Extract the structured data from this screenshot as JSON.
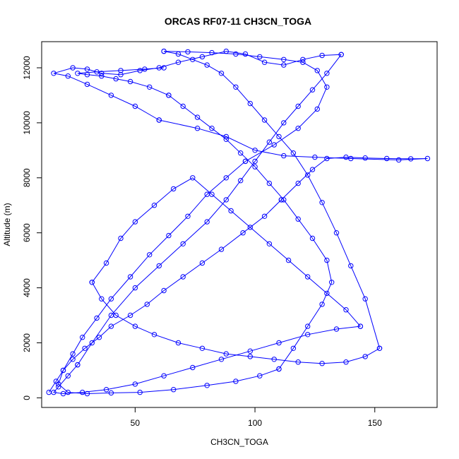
{
  "chart_data": {
    "type": "line",
    "title": "ORCAS RF07-11 CH3CN_TOGA",
    "xlabel": "CH3CN_TOGA",
    "ylabel": "Altitude (m)",
    "xlim": [
      11,
      176
    ],
    "ylim": [
      -350,
      12950
    ],
    "xticks": [
      50,
      100,
      150
    ],
    "yticks": [
      0,
      2000,
      4000,
      6000,
      8000,
      10000,
      12000
    ],
    "grid": false,
    "legend": "none",
    "color": "#0000ff",
    "marker": "open-circle",
    "series": [
      {
        "x": [
          14,
          17,
          20,
          24,
          29,
          35,
          40,
          48,
          55,
          62,
          70,
          78,
          86,
          95,
          104,
          111
        ],
        "y": [
          200,
          600,
          1000,
          1400,
          1800,
          2200,
          2600,
          3000,
          3400,
          3900,
          4400,
          4900,
          5400,
          6000,
          6600,
          7200
        ]
      },
      {
        "x": [
          111,
          118,
          124,
          130,
          138,
          146,
          155,
          165,
          172,
          160,
          140,
          125,
          112,
          100,
          88,
          76,
          60
        ],
        "y": [
          7200,
          7800,
          8300,
          8700,
          8750,
          8720,
          8700,
          8690,
          8700,
          8650,
          8700,
          8750,
          8800,
          9000,
          9500,
          9800,
          10100
        ]
      },
      {
        "x": [
          60,
          50,
          40,
          30,
          22,
          16,
          24,
          30,
          36,
          44,
          52,
          60,
          68,
          78,
          88,
          96,
          104,
          112,
          120,
          128,
          136
        ],
        "y": [
          10100,
          10600,
          11000,
          11400,
          11700,
          11800,
          12000,
          11950,
          11800,
          11750,
          11900,
          12000,
          12200,
          12400,
          12600,
          12500,
          12200,
          12100,
          12300,
          12450,
          12480
        ]
      },
      {
        "x": [
          136,
          130,
          124,
          118,
          112,
          106,
          100,
          94,
          88,
          80,
          70,
          60,
          50,
          40,
          32,
          26
        ],
        "y": [
          12480,
          11800,
          11200,
          10600,
          10000,
          9300,
          8600,
          7900,
          7200,
          6400,
          5600,
          4800,
          4000,
          3000,
          2000,
          1200
        ]
      },
      {
        "x": [
          26,
          22,
          18,
          16,
          20,
          28,
          38,
          50,
          62,
          74,
          86,
          98,
          110,
          122,
          134,
          144
        ],
        "y": [
          1200,
          800,
          400,
          200,
          150,
          200,
          300,
          500,
          800,
          1100,
          1400,
          1700,
          2000,
          2300,
          2500,
          2600
        ]
      },
      {
        "x": [
          144,
          138,
          130,
          122,
          114,
          106,
          98,
          90,
          82,
          74,
          66,
          58,
          50,
          44,
          38,
          32
        ],
        "y": [
          2600,
          3200,
          3800,
          4400,
          5000,
          5600,
          6200,
          6800,
          7400,
          8000,
          7600,
          7000,
          6400,
          5800,
          4900,
          4200
        ]
      },
      {
        "x": [
          32,
          36,
          42,
          50,
          58,
          68,
          78,
          88,
          98,
          108,
          118,
          128,
          138,
          146,
          152
        ],
        "y": [
          4200,
          3600,
          3000,
          2600,
          2300,
          2000,
          1800,
          1600,
          1500,
          1400,
          1300,
          1250,
          1300,
          1500,
          1800
        ]
      },
      {
        "x": [
          152,
          146,
          140,
          134,
          128,
          122,
          116,
          110,
          104,
          98,
          92,
          86,
          80,
          74,
          68,
          62
        ],
        "y": [
          1800,
          3600,
          4800,
          6000,
          7100,
          8100,
          8900,
          9500,
          10100,
          10700,
          11300,
          11800,
          12100,
          12300,
          12500,
          12600
        ]
      },
      {
        "x": [
          62,
          72,
          82,
          92,
          102,
          112,
          120,
          126,
          130,
          126,
          118,
          108,
          96
        ],
        "y": [
          12600,
          12580,
          12550,
          12500,
          12400,
          12300,
          12200,
          11900,
          11300,
          10500,
          9800,
          9200,
          8600
        ]
      },
      {
        "x": [
          96,
          88,
          80,
          72,
          64,
          56,
          48,
          40,
          34,
          28,
          24,
          20,
          18,
          22,
          30,
          40,
          52,
          66,
          80,
          92,
          102,
          110
        ],
        "y": [
          8600,
          8000,
          7400,
          6600,
          5900,
          5200,
          4400,
          3600,
          2900,
          2200,
          1600,
          1000,
          500,
          200,
          150,
          180,
          200,
          300,
          450,
          600,
          800,
          1050
        ]
      },
      {
        "x": [
          110,
          116,
          122,
          128,
          132,
          130,
          124,
          118,
          112,
          106,
          100,
          94,
          88,
          82,
          76,
          70,
          64
        ],
        "y": [
          1050,
          1800,
          2600,
          3400,
          4200,
          5000,
          5800,
          6500,
          7200,
          7800,
          8400,
          8900,
          9400,
          9800,
          10200,
          10600,
          11000
        ]
      },
      {
        "x": [
          64,
          56,
          48,
          42,
          36,
          30,
          26,
          34,
          44,
          54,
          62
        ],
        "y": [
          11000,
          11300,
          11500,
          11600,
          11700,
          11750,
          11800,
          11850,
          11900,
          11950,
          12000
        ]
      }
    ]
  }
}
